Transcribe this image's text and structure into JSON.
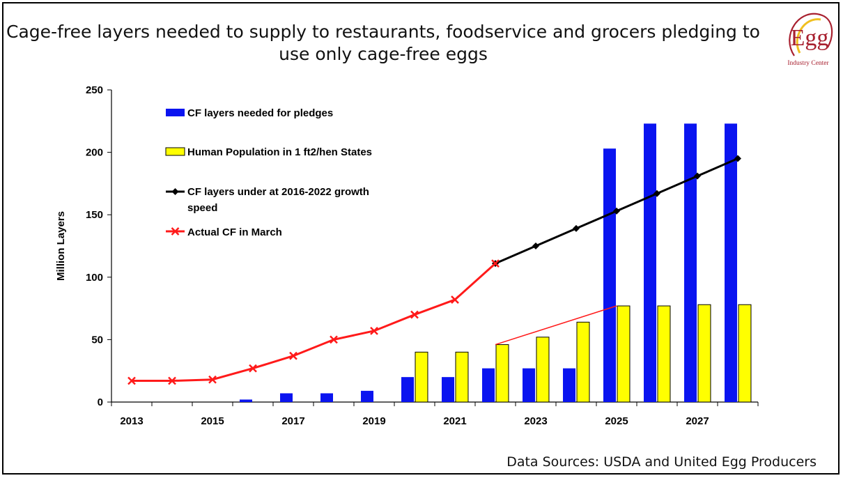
{
  "title_lines": [
    "Cage-free layers needed to supply to restaurants, foodservice and grocers pledging to",
    "use only cage-free eggs"
  ],
  "logo": {
    "word": "Egg",
    "sub": "Industry Center"
  },
  "source": "Data Sources: USDA and United Egg Producers",
  "colors": {
    "pledges": "#0a14f0",
    "population": "#ffff00",
    "growth": "#000000",
    "actual": "#ff1a1a"
  },
  "chart_data": {
    "type": "bar",
    "ylabel": "Million Layers",
    "ylim": [
      0,
      250
    ],
    "yticks": [
      0,
      50,
      100,
      150,
      200,
      250
    ],
    "x": [
      2013,
      2014,
      2015,
      2016,
      2017,
      2018,
      2019,
      2020,
      2021,
      2022,
      2023,
      2024,
      2025,
      2026,
      2027,
      2028
    ],
    "xtick_labels": [
      "2013",
      "2015",
      "2017",
      "2019",
      "2021",
      "2023",
      "2025",
      "2027"
    ],
    "legend_placement": "top-left",
    "series": [
      {
        "name": "CF layers needed for pledges",
        "kind": "bar",
        "values": [
          0,
          0,
          0,
          2,
          7,
          7,
          9,
          20,
          20,
          27,
          27,
          27,
          203,
          223,
          223,
          223
        ]
      },
      {
        "name": "Human Population in 1 ft2/hen States",
        "kind": "bar",
        "values": [
          0,
          0,
          0,
          0,
          0,
          0,
          0,
          40,
          40,
          46,
          52,
          64,
          77,
          77,
          78,
          78
        ]
      },
      {
        "name": "CF layers under at 2016-2022 growth speed",
        "kind": "line",
        "x": [
          2022,
          2023,
          2024,
          2025,
          2026,
          2027,
          2028
        ],
        "values": [
          111,
          125,
          139,
          153,
          167,
          181,
          195
        ]
      },
      {
        "name": "Actual CF in March",
        "kind": "line",
        "x": [
          2013,
          2014,
          2015,
          2016,
          2017,
          2018,
          2019,
          2020,
          2021,
          2022
        ],
        "values": [
          17,
          17,
          18,
          27,
          37,
          50,
          57,
          70,
          82,
          111
        ]
      }
    ],
    "annotations": [
      {
        "kind": "trend-line",
        "from": [
          2022,
          46
        ],
        "to": [
          2025,
          77
        ]
      }
    ]
  }
}
